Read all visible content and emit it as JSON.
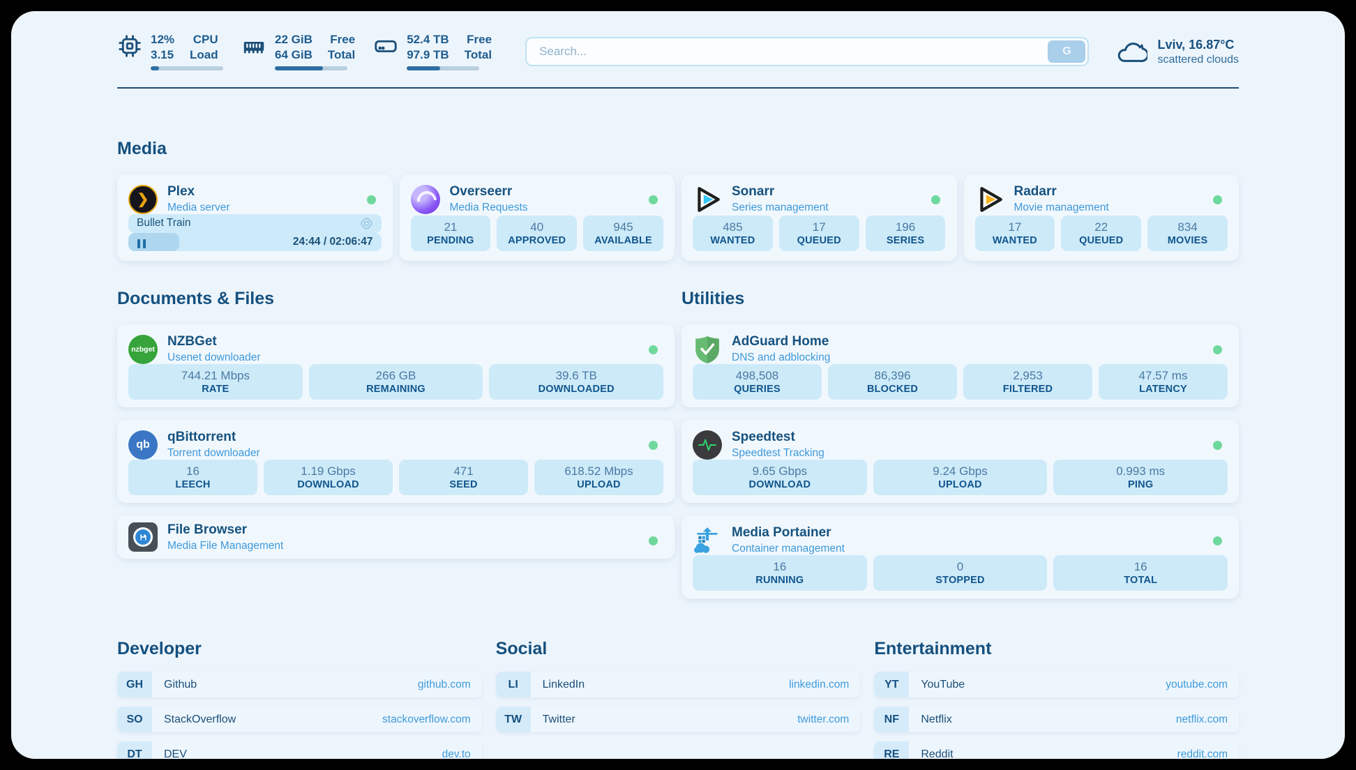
{
  "theme": {
    "page_bg": "#edf5fc",
    "card_bg": "#f1f8fd",
    "chip_bg": "#cdeaf9",
    "navy_text": "#14507f",
    "subtitle_blue": "#3e98da",
    "url_blue": "#3e9ad9",
    "status_green": "#6fd89c",
    "bar_fill": "#2f6fa3",
    "search_button_bg": "#a9cfeb"
  },
  "header": {
    "cpu": {
      "icon": "cpu-icon",
      "value1": "12%",
      "value2": "3.15",
      "label1": "CPU",
      "label2": "Load",
      "percent": 12
    },
    "ram": {
      "icon": "ram-icon",
      "value1": "22 GiB",
      "value2": "64 GiB",
      "label1": "Free",
      "label2": "Total",
      "percent": 66
    },
    "disk": {
      "icon": "disk-icon",
      "value1": "52.4 TB",
      "value2": "97.9 TB",
      "label1": "Free",
      "label2": "Total",
      "percent": 46
    },
    "search": {
      "placeholder": "Search...",
      "button_label": "G"
    },
    "weather": {
      "icon": "cloud-icon",
      "location": "Lviv, 16.87°C",
      "condition": "scattered clouds"
    }
  },
  "media": {
    "title": "Media",
    "plex": {
      "icon": "plex-icon",
      "icon_glyph": "❯",
      "name": "Plex",
      "subtitle": "Media server",
      "status": "online",
      "now_playing": "Bullet Train",
      "time": "24:44 / 02:06:47",
      "progress_percent": 20
    },
    "overseerr": {
      "icon": "overseerr-icon",
      "name": "Overseerr",
      "subtitle": "Media Requests",
      "status": "online",
      "stats": [
        {
          "value": "21",
          "label": "PENDING"
        },
        {
          "value": "40",
          "label": "APPROVED"
        },
        {
          "value": "945",
          "label": "AVAILABLE"
        }
      ]
    },
    "sonarr": {
      "icon": "sonarr-icon",
      "name": "Sonarr",
      "subtitle": "Series management",
      "status": "online",
      "stats": [
        {
          "value": "485",
          "label": "WANTED"
        },
        {
          "value": "17",
          "label": "QUEUED"
        },
        {
          "value": "196",
          "label": "SERIES"
        }
      ]
    },
    "radarr": {
      "icon": "radarr-icon",
      "name": "Radarr",
      "subtitle": "Movie management",
      "status": "online",
      "stats": [
        {
          "value": "17",
          "label": "WANTED"
        },
        {
          "value": "22",
          "label": "QUEUED"
        },
        {
          "value": "834",
          "label": "MOVIES"
        }
      ]
    }
  },
  "documents": {
    "title": "Documents & Files",
    "nzbget": {
      "icon": "nzbget-icon",
      "icon_text": "nzbget",
      "name": "NZBGet",
      "subtitle": "Usenet downloader",
      "status": "online",
      "stats": [
        {
          "value": "744.21 Mbps",
          "label": "RATE"
        },
        {
          "value": "266 GB",
          "label": "REMAINING"
        },
        {
          "value": "39.6 TB",
          "label": "DOWNLOADED"
        }
      ]
    },
    "qbittorrent": {
      "icon": "qbittorrent-icon",
      "icon_text": "qb",
      "name": "qBittorrent",
      "subtitle": "Torrent downloader",
      "status": "online",
      "stats": [
        {
          "value": "16",
          "label": "LEECH"
        },
        {
          "value": "1.19 Gbps",
          "label": "DOWNLOAD"
        },
        {
          "value": "471",
          "label": "SEED"
        },
        {
          "value": "618.52 Mbps",
          "label": "UPLOAD"
        }
      ]
    },
    "filebrowser": {
      "icon": "filebrowser-icon",
      "name": "File Browser",
      "subtitle": "Media File Management",
      "status": "online"
    }
  },
  "utilities": {
    "title": "Utilities",
    "adguard": {
      "icon": "adguard-icon",
      "name": "AdGuard Home",
      "subtitle": "DNS and adblocking",
      "status": "online",
      "stats": [
        {
          "value": "498,508",
          "label": "QUERIES"
        },
        {
          "value": "86,396",
          "label": "BLOCKED"
        },
        {
          "value": "2,953",
          "label": "FILTERED"
        },
        {
          "value": "47.57 ms",
          "label": "LATENCY"
        }
      ]
    },
    "speedtest": {
      "icon": "speedtest-icon",
      "name": "Speedtest",
      "subtitle": "Speedtest Tracking",
      "status": "online",
      "stats": [
        {
          "value": "9.65 Gbps",
          "label": "DOWNLOAD"
        },
        {
          "value": "9.24 Gbps",
          "label": "UPLOAD"
        },
        {
          "value": "0.993 ms",
          "label": "PING"
        }
      ]
    },
    "portainer": {
      "icon": "portainer-icon",
      "name": "Media Portainer",
      "subtitle": "Container management",
      "status": "online",
      "stats": [
        {
          "value": "16",
          "label": "RUNNING"
        },
        {
          "value": "0",
          "label": "STOPPED"
        },
        {
          "value": "16",
          "label": "TOTAL"
        }
      ]
    }
  },
  "links": {
    "developer": {
      "title": "Developer",
      "items": [
        {
          "badge": "GH",
          "name": "Github",
          "url": "github.com"
        },
        {
          "badge": "SO",
          "name": "StackOverflow",
          "url": "stackoverflow.com"
        },
        {
          "badge": "DT",
          "name": "DEV",
          "url": "dev.to"
        }
      ]
    },
    "social": {
      "title": "Social",
      "items": [
        {
          "badge": "LI",
          "name": "LinkedIn",
          "url": "linkedin.com"
        },
        {
          "badge": "TW",
          "name": "Twitter",
          "url": "twitter.com"
        }
      ]
    },
    "entertainment": {
      "title": "Entertainment",
      "items": [
        {
          "badge": "YT",
          "name": "YouTube",
          "url": "youtube.com"
        },
        {
          "badge": "NF",
          "name": "Netflix",
          "url": "netflix.com"
        },
        {
          "badge": "RE",
          "name": "Reddit",
          "url": "reddit.com"
        }
      ]
    }
  }
}
